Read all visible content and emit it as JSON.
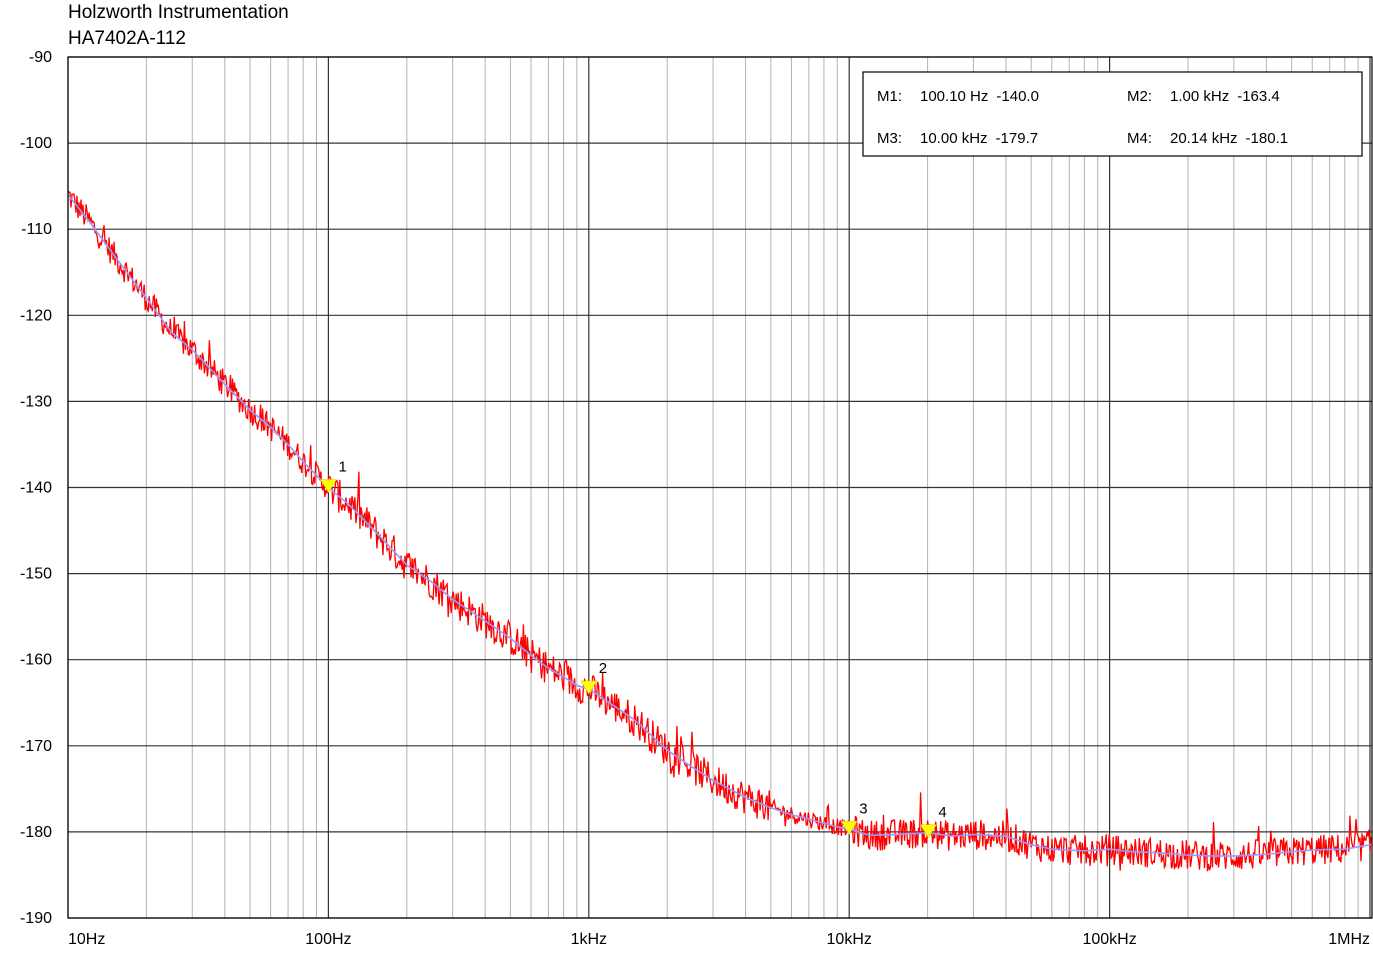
{
  "header": {
    "line1": "Holzworth Instrumentation",
    "line2": "HA7402A-112"
  },
  "chart_data": {
    "type": "line",
    "xscale": "log",
    "xlim_hz": [
      10,
      1200000
    ],
    "ylim": [
      -190,
      -90
    ],
    "y_ticks": [
      -90,
      -100,
      -110,
      -120,
      -130,
      -140,
      -150,
      -160,
      -170,
      -180,
      -190
    ],
    "x_ticks": [
      {
        "value": 10,
        "label": "10Hz"
      },
      {
        "value": 100,
        "label": "100Hz"
      },
      {
        "value": 1000,
        "label": "1kHz"
      },
      {
        "value": 10000,
        "label": "10kHz"
      },
      {
        "value": 100000,
        "label": "100kHz"
      },
      {
        "value": 1000000,
        "label": "1MHz"
      }
    ],
    "grid": true,
    "legend_placement": "top-right",
    "series": [
      {
        "color": "#ff0000",
        "style": "raw",
        "x": [
          10,
          12,
          15,
          20,
          25,
          30,
          40,
          50,
          60,
          70,
          80,
          100,
          120,
          150,
          200,
          250,
          300,
          400,
          500,
          600,
          700,
          800,
          900,
          1000,
          1200,
          1500,
          2000,
          2500,
          3000,
          4000,
          5000,
          6000,
          7000,
          8000,
          9000,
          10000,
          12000,
          15000,
          20000,
          25000,
          30000,
          40000,
          50000,
          60000,
          80000,
          100000,
          120000,
          150000,
          200000,
          250000,
          300000,
          400000,
          500000,
          600000,
          800000,
          1000000,
          1200000
        ],
        "y": [
          -106,
          -109,
          -113,
          -118,
          -122,
          -124,
          -128,
          -131,
          -133,
          -135,
          -137,
          -140,
          -142,
          -145,
          -149,
          -151,
          -153,
          -155.5,
          -157.5,
          -159.5,
          -161,
          -162,
          -163,
          -163.4,
          -165,
          -167,
          -170.5,
          -172.5,
          -174,
          -176,
          -177.2,
          -178,
          -178.5,
          -179,
          -179.4,
          -179.7,
          -180.4,
          -180.3,
          -180.1,
          -180.5,
          -180.3,
          -180.5,
          -181.5,
          -182,
          -182.2,
          -182,
          -182.3,
          -182.4,
          -182.7,
          -182.8,
          -182.8,
          -182.6,
          -182.3,
          -182.1,
          -182,
          -181.5,
          -181
        ]
      },
      {
        "color": "#9999ff",
        "style": "smoothed",
        "x": [
          10,
          12,
          15,
          20,
          25,
          30,
          40,
          50,
          60,
          70,
          80,
          100,
          120,
          150,
          200,
          250,
          300,
          400,
          500,
          600,
          700,
          800,
          900,
          1000,
          1200,
          1500,
          2000,
          2500,
          3000,
          4000,
          5000,
          6000,
          7000,
          8000,
          9000,
          10000,
          12000,
          15000,
          20000,
          25000,
          30000,
          40000,
          50000,
          60000,
          80000,
          100000,
          120000,
          150000,
          200000,
          250000,
          300000,
          400000,
          500000,
          600000,
          800000,
          1000000,
          1200000
        ],
        "y": [
          -106,
          -109,
          -113,
          -118,
          -122,
          -124,
          -128,
          -131,
          -133,
          -135,
          -137,
          -140,
          -142,
          -145,
          -149,
          -151,
          -153,
          -155.5,
          -157.5,
          -159.5,
          -161,
          -162,
          -163,
          -163.4,
          -165,
          -167,
          -170.5,
          -172.5,
          -174,
          -176,
          -177.2,
          -178,
          -178.5,
          -179,
          -179.4,
          -179.7,
          -180.4,
          -180.3,
          -180.1,
          -180.5,
          -180.3,
          -180.5,
          -181.5,
          -182,
          -182.2,
          -182,
          -182.3,
          -182.4,
          -182.7,
          -182.8,
          -182.8,
          -182.6,
          -182.3,
          -182.1,
          -182,
          -181.5,
          -181
        ]
      }
    ],
    "markers": [
      {
        "label": "1",
        "freq_hz": 100.1,
        "value": -140.0,
        "color": "#ffff00"
      },
      {
        "label": "2",
        "freq_hz": 1000,
        "value": -163.4,
        "color": "#ffff00"
      },
      {
        "label": "3",
        "freq_hz": 10000,
        "value": -179.7,
        "color": "#ffff00"
      },
      {
        "label": "4",
        "freq_hz": 20140,
        "value": -180.1,
        "color": "#ffff00"
      }
    ],
    "legend": [
      {
        "name": "M1:",
        "freq": "100.10 Hz",
        "value": "-140.0"
      },
      {
        "name": "M2:",
        "freq": "1.00 kHz",
        "value": "-163.4"
      },
      {
        "name": "M3:",
        "freq": "10.00 kHz",
        "value": "-179.7"
      },
      {
        "name": "M4:",
        "freq": "20.14 kHz",
        "value": "-180.1"
      }
    ]
  }
}
